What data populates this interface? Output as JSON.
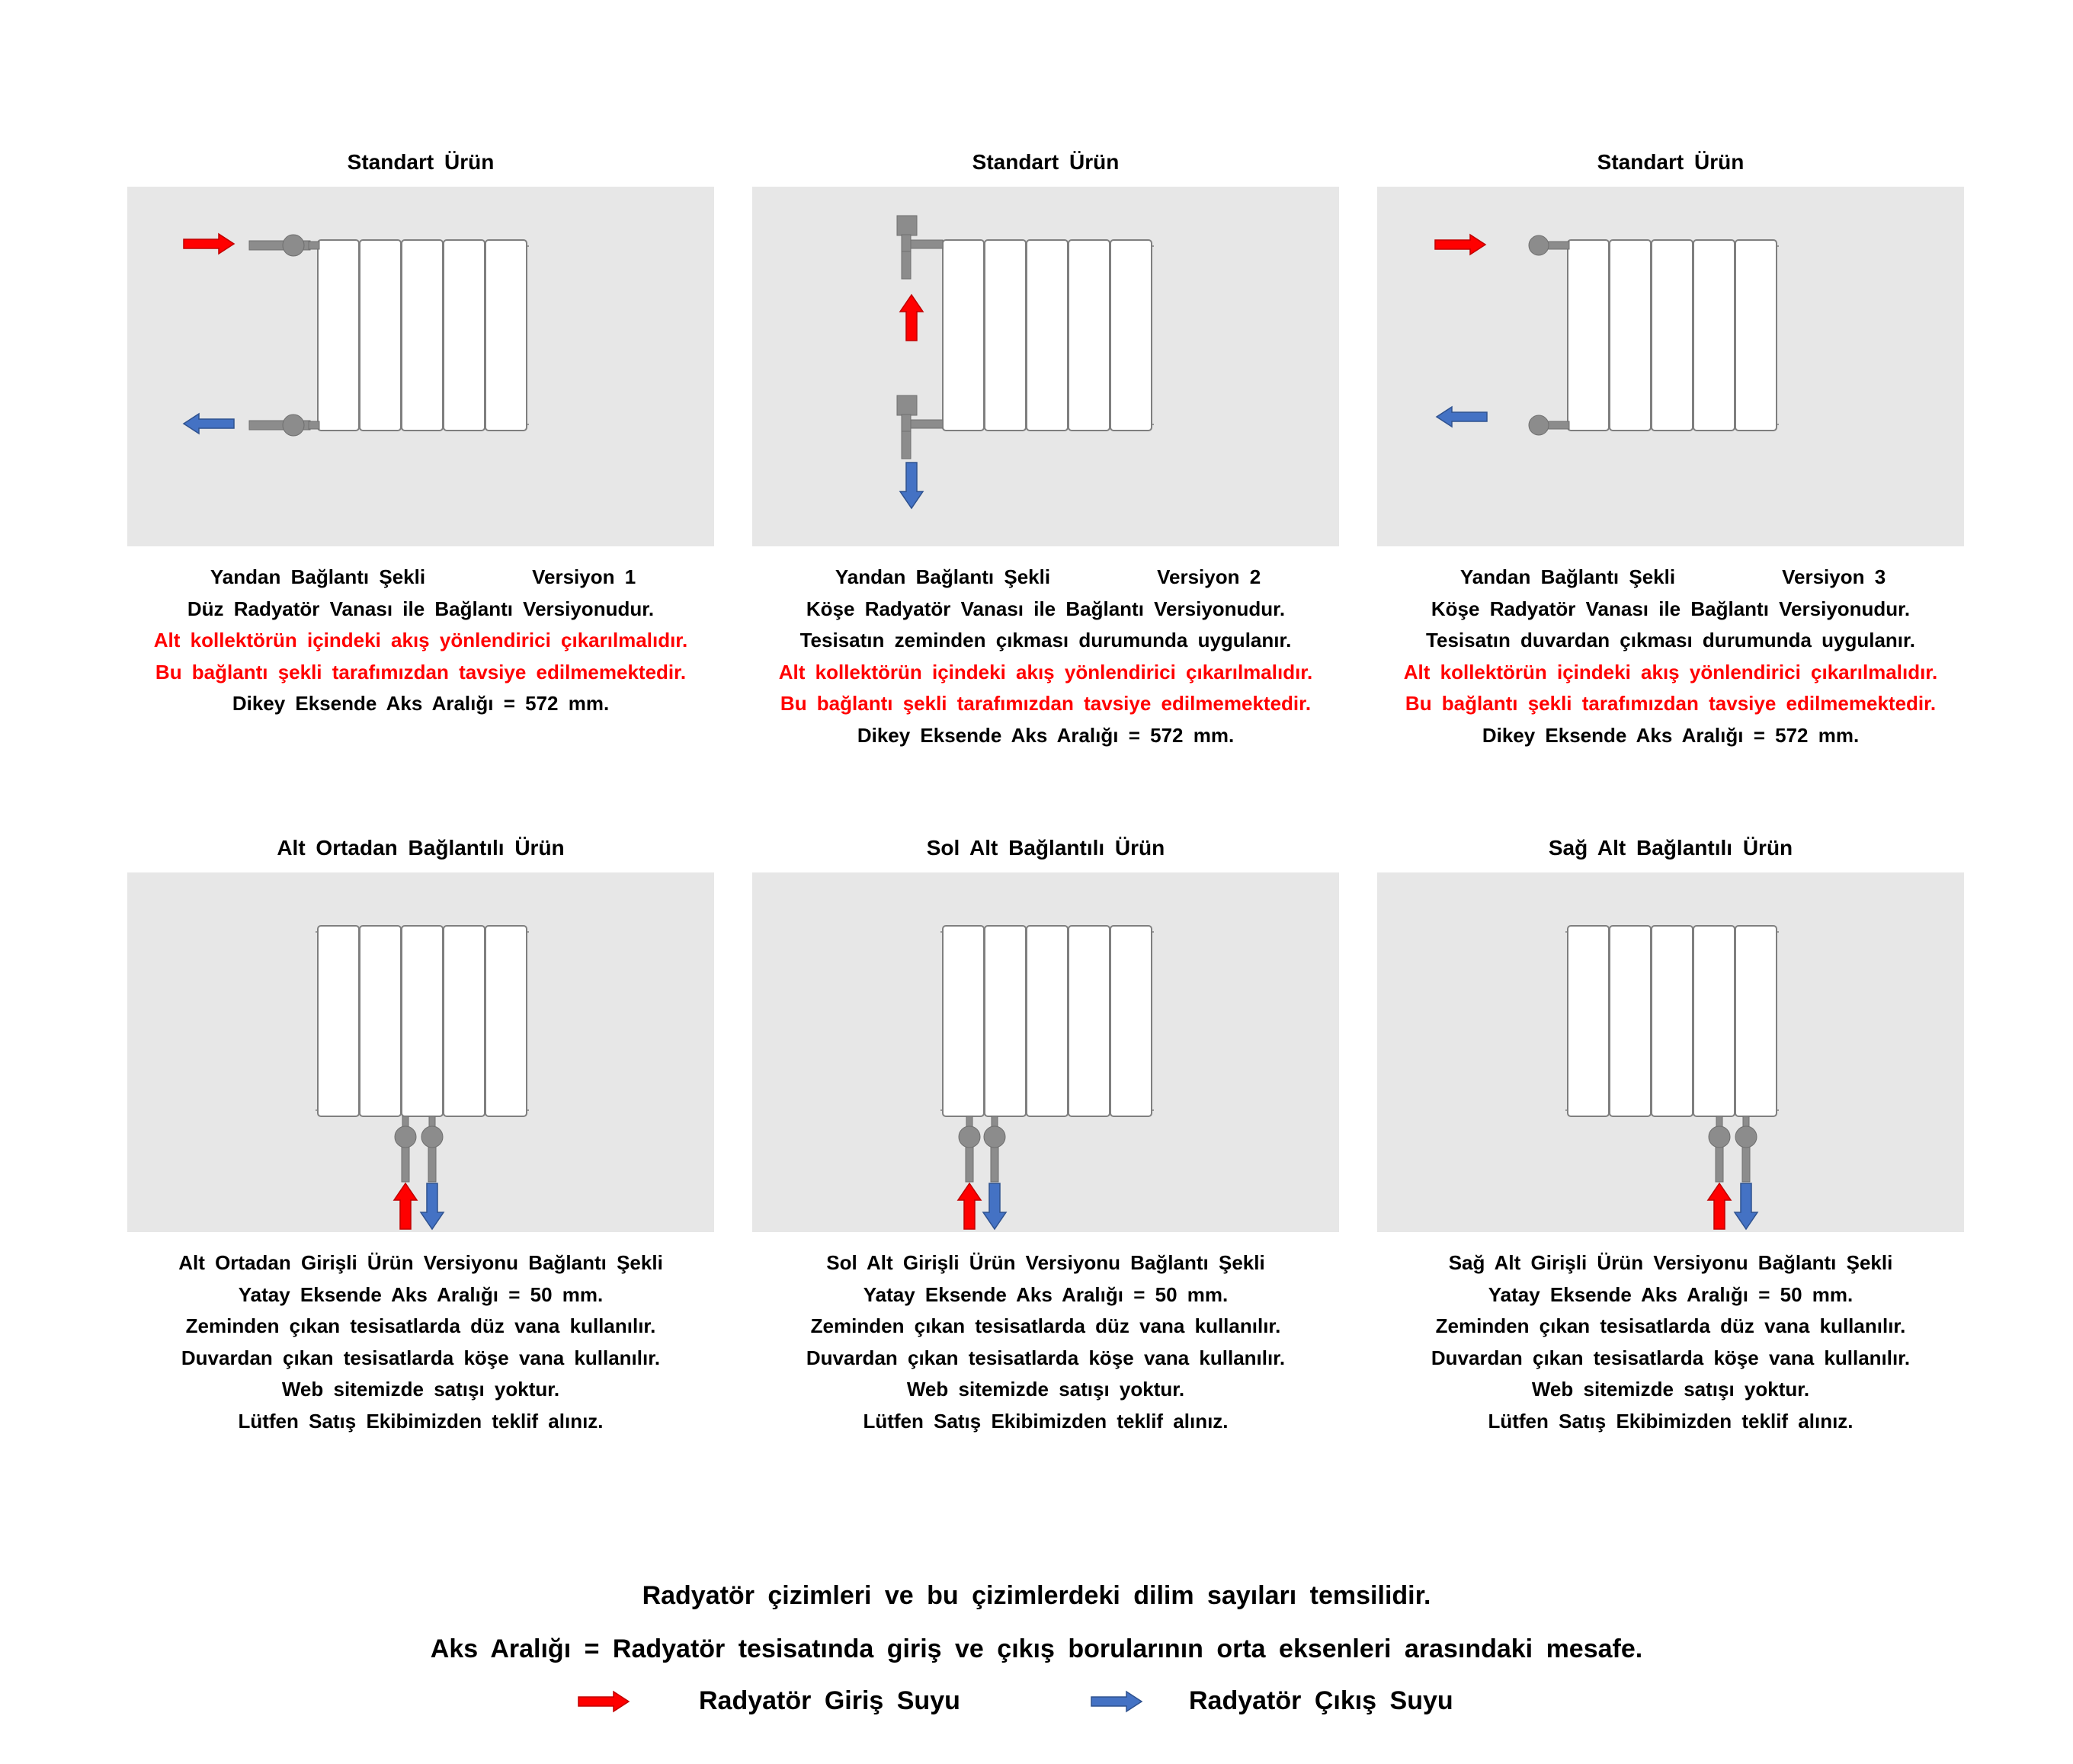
{
  "panels": [
    {
      "title": "Standart  Ürün",
      "lines": [
        {
          "text": "Yandan  Bağlantı  Şekli",
          "version": "Versiyon 1"
        },
        {
          "text": "Düz  Radyatör  Vanası  ile  Bağlantı  Versiyonudur."
        },
        {
          "text": "Alt kollektörün içindeki akış yönlendirici çıkarılmalıdır.",
          "red": true
        },
        {
          "text": "Bu bağlantı şekli  tarafımızdan tavsiye edilmemektedir.",
          "red": true
        },
        {
          "text": "Dikey  Eksende  Aks  Aralığı = 572 mm."
        }
      ]
    },
    {
      "title": "Standart  Ürün",
      "lines": [
        {
          "text": "Yandan  Bağlantı  Şekli",
          "version": "Versiyon 2"
        },
        {
          "text": "Köşe  Radyatör  Vanası  ile  Bağlantı  Versiyonudur."
        },
        {
          "text": "Tesisatın  zeminden  çıkması  durumunda  uygulanır."
        },
        {
          "text": "Alt kollektörün içindeki akış yönlendirici çıkarılmalıdır.",
          "red": true
        },
        {
          "text": "Bu bağlantı şekli  tarafımızdan tavsiye edilmemektedir.",
          "red": true
        },
        {
          "text": "Dikey  Eksende  Aks  Aralığı = 572 mm."
        }
      ]
    },
    {
      "title": "Standart  Ürün",
      "lines": [
        {
          "text": "Yandan  Bağlantı  Şekli",
          "version": "Versiyon 3"
        },
        {
          "text": "Köşe  Radyatör  Vanası  ile  Bağlantı  Versiyonudur."
        },
        {
          "text": "Tesisatın  duvardan  çıkması  durumunda  uygulanır."
        },
        {
          "text": "Alt kollektörün içindeki akış yönlendirici çıkarılmalıdır.",
          "red": true
        },
        {
          "text": "Bu bağlantı şekli  tarafımızdan tavsiye edilmemektedir.",
          "red": true
        },
        {
          "text": "Dikey  Eksende  Aks  Aralığı = 572 mm."
        }
      ]
    },
    {
      "title": "Alt  Ortadan  Bağlantılı  Ürün",
      "lines": [
        {
          "text": "Alt  Ortadan  Girişli  Ürün  Versiyonu  Bağlantı  Şekli"
        },
        {
          "text": "Yatay  Eksende  Aks  Aralığı  =  50 mm."
        },
        {
          "text": "Zeminden  çıkan  tesisatlarda  düz  vana  kullanılır."
        },
        {
          "text": "Duvardan  çıkan  tesisatlarda  köşe  vana  kullanılır."
        },
        {
          "text": "Web  sitemizde  satışı  yoktur."
        },
        {
          "text": "Lütfen  Satış  Ekibimizden  teklif  alınız."
        }
      ]
    },
    {
      "title": "Sol  Alt  Bağlantılı  Ürün",
      "lines": [
        {
          "text": "Sol  Alt  Girişli  Ürün  Versiyonu  Bağlantı  Şekli"
        },
        {
          "text": "Yatay  Eksende  Aks  Aralığı  =  50 mm."
        },
        {
          "text": "Zeminden  çıkan  tesisatlarda  düz  vana  kullanılır."
        },
        {
          "text": "Duvardan  çıkan  tesisatlarda  köşe  vana  kullanılır."
        },
        {
          "text": "Web  sitemizde  satışı  yoktur."
        },
        {
          "text": "Lütfen  Satış  Ekibimizden  teklif  alınız."
        }
      ]
    },
    {
      "title": "Sağ  Alt  Bağlantılı  Ürün",
      "lines": [
        {
          "text": "Sağ  Alt  Girişli  Ürün  Versiyonu  Bağlantı  Şekli"
        },
        {
          "text": "Yatay  Eksende  Aks  Aralığı  =  50 mm."
        },
        {
          "text": "Zeminden  çıkan  tesisatlarda  düz  vana  kullanılır."
        },
        {
          "text": "Duvardan  çıkan  tesisatlarda  köşe  vana  kullanılır."
        },
        {
          "text": "Web  sitemizde  satışı  yoktur."
        },
        {
          "text": "Lütfen  Satış  Ekibimizden  teklif  alınız."
        }
      ]
    }
  ],
  "footer": {
    "note1": "Radyatör  çizimleri  ve  bu  çizimlerdeki  dilim  sayıları  temsilidir.",
    "note2": "Aks  Aralığı  =  Radyatör  tesisatında  giriş  ve  çıkış  borularının  orta  eksenleri  arasındaki  mesafe."
  },
  "legend": {
    "inlet_label": "Radyatör  Giriş  Suyu",
    "outlet_label": "Radyatör  Çıkış  Suyu"
  },
  "colors": {
    "inlet": "#ff0000",
    "outlet": "#4472c4",
    "pipe": "#8c8c8c",
    "panel_bg": "#e7e7e7"
  }
}
